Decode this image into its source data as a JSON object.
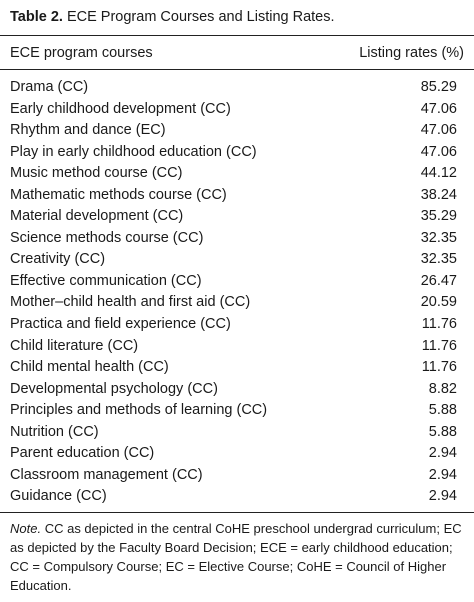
{
  "caption": {
    "label": "Table 2.",
    "title": "ECE Program Courses and Listing Rates."
  },
  "header": {
    "col_course": "ECE program courses",
    "col_rate": "Listing rates (%)"
  },
  "rows": [
    {
      "course": "Drama (CC)",
      "rate": "85.29"
    },
    {
      "course": "Early childhood development (CC)",
      "rate": "47.06"
    },
    {
      "course": "Rhythm and dance (EC)",
      "rate": "47.06"
    },
    {
      "course": "Play in early childhood education (CC)",
      "rate": "47.06"
    },
    {
      "course": "Music method course (CC)",
      "rate": "44.12"
    },
    {
      "course": "Mathematic methods course (CC)",
      "rate": "38.24"
    },
    {
      "course": "Material development (CC)",
      "rate": "35.29"
    },
    {
      "course": "Science methods course (CC)",
      "rate": "32.35"
    },
    {
      "course": "Creativity (CC)",
      "rate": "32.35"
    },
    {
      "course": "Effective communication (CC)",
      "rate": "26.47"
    },
    {
      "course": "Mother–child health and first aid (CC)",
      "rate": "20.59"
    },
    {
      "course": "Practica and field experience (CC)",
      "rate": "11.76"
    },
    {
      "course": "Child literature (CC)",
      "rate": "11.76"
    },
    {
      "course": "Child mental health (CC)",
      "rate": "11.76"
    },
    {
      "course": "Developmental psychology (CC)",
      "rate": "8.82"
    },
    {
      "course": "Principles and methods of learning (CC)",
      "rate": "5.88"
    },
    {
      "course": "Nutrition (CC)",
      "rate": "5.88"
    },
    {
      "course": "Parent education (CC)",
      "rate": "2.94"
    },
    {
      "course": "Classroom management (CC)",
      "rate": "2.94"
    },
    {
      "course": "Guidance (CC)",
      "rate": "2.94"
    }
  ],
  "note": {
    "label": "Note.",
    "text": "CC as depicted in the central CoHE preschool undergrad curriculum; EC as depicted by the Faculty Board Decision; ECE = early childhood education; CC = Compulsory Course; EC = Elective Course; CoHE = Council of Higher Education."
  }
}
